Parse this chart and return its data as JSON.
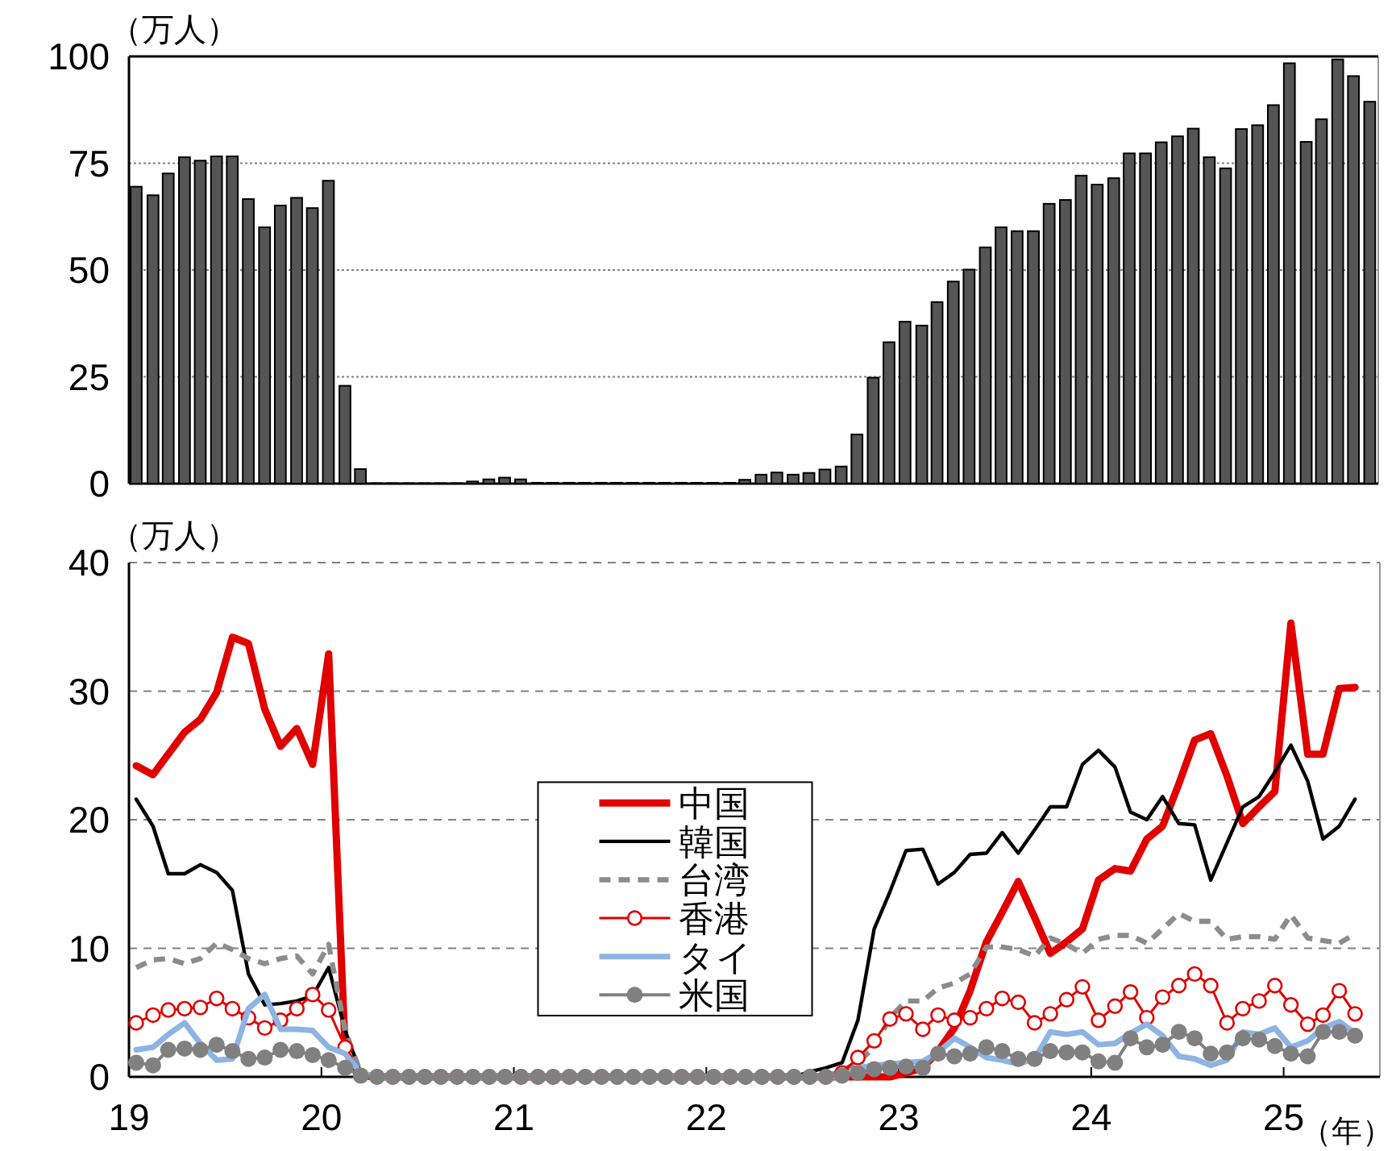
{
  "chart_data": [
    {
      "type": "bar",
      "ylabel": "（万人）",
      "color": "#555555",
      "grid": "y",
      "tick_labels": "y",
      "xlim": [
        "2019-01-01",
        "2025-07-01"
      ],
      "ylim": [
        0,
        100
      ],
      "yticks": [
        0,
        25,
        50,
        75,
        100
      ],
      "x": [
        "2019-01-15",
        "2019-02-15",
        "2019-03-15",
        "2019-04-15",
        "2019-05-15",
        "2019-06-15",
        "2019-07-15",
        "2019-08-15",
        "2019-09-15",
        "2019-10-15",
        "2019-11-15",
        "2019-12-15",
        "2020-01-15",
        "2020-02-15",
        "2020-03-15",
        "2020-04-15",
        "2020-05-15",
        "2020-06-15",
        "2020-07-15",
        "2020-08-15",
        "2020-09-15",
        "2020-10-15",
        "2020-11-15",
        "2020-12-15",
        "2021-01-15",
        "2021-02-15",
        "2021-03-15",
        "2021-04-15",
        "2021-05-15",
        "2021-06-15",
        "2021-07-15",
        "2021-08-15",
        "2021-09-15",
        "2021-10-15",
        "2021-11-15",
        "2021-12-15",
        "2022-01-15",
        "2022-02-15",
        "2022-03-15",
        "2022-04-15",
        "2022-05-15",
        "2022-06-15",
        "2022-07-15",
        "2022-08-15",
        "2022-09-15",
        "2022-10-15",
        "2022-11-15",
        "2022-12-15",
        "2023-01-15",
        "2023-02-15",
        "2023-03-15",
        "2023-04-15",
        "2023-05-15",
        "2023-06-15",
        "2023-07-15",
        "2023-08-15",
        "2023-09-15",
        "2023-10-15",
        "2023-11-15",
        "2023-12-15",
        "2024-01-15",
        "2024-02-15",
        "2024-03-15",
        "2024-04-15",
        "2024-05-15",
        "2024-06-15",
        "2024-07-15",
        "2024-08-15",
        "2024-09-15",
        "2024-10-15",
        "2024-11-15",
        "2024-12-15",
        "2025-01-15",
        "2025-02-15",
        "2025-03-15",
        "2025-04-15",
        "2025-05-15",
        "2025-06-15"
      ],
      "values": [
        69.5,
        67.5,
        72.6,
        76.4,
        75.6,
        76.6,
        76.6,
        66.6,
        60.0,
        65.1,
        66.9,
        64.5,
        70.9,
        22.9,
        3.4,
        0.1,
        0.1,
        0.1,
        0.1,
        0.1,
        0.1,
        0.5,
        1.0,
        1.4,
        1.0,
        0.2,
        0.2,
        0.2,
        0.2,
        0.2,
        0.2,
        0.2,
        0.2,
        0.2,
        0.2,
        0.2,
        0.2,
        0.2,
        0.9,
        2.1,
        2.6,
        2.1,
        2.5,
        3.3,
        4.0,
        11.5,
        24.8,
        33.1,
        37.9,
        37.0,
        42.5,
        47.3,
        50.1,
        55.3,
        60.0,
        59.1,
        59.1,
        65.5,
        66.4,
        72.1,
        70.0,
        71.5,
        77.3,
        77.3,
        79.9,
        81.3,
        83.1,
        76.4,
        73.8,
        83.0,
        83.9,
        88.6,
        98.4,
        80.0,
        85.3,
        99.3,
        95.4,
        89.4
      ]
    },
    {
      "type": "line",
      "ylabel": "（万人）",
      "xlabel": "（年）",
      "grid": "y",
      "legend": "center",
      "xlim": [
        "2019-01-01",
        "2025-07-01"
      ],
      "ylim": [
        0,
        40
      ],
      "yticks": [
        0,
        10,
        20,
        30,
        40
      ],
      "xticks": [
        {
          "value": "2019-01-01",
          "label": "19"
        },
        {
          "value": "2020-01-01",
          "label": "20"
        },
        {
          "value": "2021-01-01",
          "label": "21"
        },
        {
          "value": "2022-01-01",
          "label": "22"
        },
        {
          "value": "2023-01-01",
          "label": "23"
        },
        {
          "value": "2024-01-01",
          "label": "24"
        },
        {
          "value": "2025-01-01",
          "label": "25"
        }
      ],
      "x": [
        "2019-01-15",
        "2019-02-15",
        "2019-03-15",
        "2019-04-15",
        "2019-05-15",
        "2019-06-15",
        "2019-07-15",
        "2019-08-15",
        "2019-09-15",
        "2019-10-15",
        "2019-11-15",
        "2019-12-15",
        "2020-01-15",
        "2020-02-15",
        "2020-03-15",
        "2020-04-15",
        "2020-05-15",
        "2020-06-15",
        "2020-07-15",
        "2020-08-15",
        "2020-09-15",
        "2020-10-15",
        "2020-11-15",
        "2020-12-15",
        "2021-01-15",
        "2021-02-15",
        "2021-03-15",
        "2021-04-15",
        "2021-05-15",
        "2021-06-15",
        "2021-07-15",
        "2021-08-15",
        "2021-09-15",
        "2021-10-15",
        "2021-11-15",
        "2021-12-15",
        "2022-01-15",
        "2022-02-15",
        "2022-03-15",
        "2022-04-15",
        "2022-05-15",
        "2022-06-15",
        "2022-07-15",
        "2022-08-15",
        "2022-09-15",
        "2022-10-15",
        "2022-11-15",
        "2022-12-15",
        "2023-01-15",
        "2023-02-15",
        "2023-03-15",
        "2023-04-15",
        "2023-05-15",
        "2023-06-15",
        "2023-07-15",
        "2023-08-15",
        "2023-09-15",
        "2023-10-15",
        "2023-11-15",
        "2023-12-15",
        "2024-01-15",
        "2024-02-15",
        "2024-03-15",
        "2024-04-15",
        "2024-05-15",
        "2024-06-15",
        "2024-07-15",
        "2024-08-15",
        "2024-09-15",
        "2024-10-15",
        "2024-11-15",
        "2024-12-15",
        "2025-01-15",
        "2025-02-15",
        "2025-03-15",
        "2025-04-15",
        "2025-05-15"
      ],
      "series": [
        {
          "name": "中国",
          "color": "#e00000",
          "values": [
            24.2,
            23.5,
            25.1,
            26.8,
            27.8,
            29.9,
            34.2,
            33.7,
            28.6,
            25.7,
            27.1,
            24.3,
            32.9,
            2.0,
            0.1,
            0,
            0,
            0,
            0,
            0,
            0,
            0,
            0,
            0,
            0,
            0,
            0,
            0,
            0,
            0,
            0,
            0,
            0,
            0,
            0,
            0,
            0,
            0,
            0,
            0,
            0,
            0,
            0,
            0,
            0,
            0,
            0,
            0,
            0.3,
            0.7,
            2.0,
            3.8,
            6.7,
            10.5,
            12.8,
            15.2,
            12.4,
            9.6,
            10.5,
            11.5,
            15.3,
            16.2,
            16.0,
            18.5,
            19.5,
            22.8,
            26.2,
            26.7,
            23.4,
            19.7,
            21.0,
            22.2,
            35.3,
            25.1,
            25.1,
            30.2,
            30.3
          ]
        },
        {
          "name": "韓国",
          "color": "#000000",
          "values": [
            21.6,
            19.5,
            15.8,
            15.8,
            16.5,
            15.9,
            14.5,
            8.0,
            5.6,
            5.7,
            5.9,
            6.3,
            8.5,
            3.6,
            0.3,
            0,
            0,
            0,
            0,
            0,
            0,
            0,
            0,
            0,
            0,
            0,
            0,
            0,
            0,
            0,
            0,
            0,
            0,
            0,
            0,
            0,
            0,
            0,
            0,
            0,
            0,
            0,
            0.4,
            0.7,
            1.1,
            4.4,
            11.5,
            14.4,
            17.6,
            17.7,
            15.0,
            15.9,
            17.3,
            17.4,
            19.0,
            17.4,
            19.2,
            21.0,
            21.0,
            24.3,
            25.4,
            24.1,
            20.6,
            20.0,
            21.8,
            19.7,
            19.6,
            15.3,
            18.2,
            21.0,
            21.8,
            23.7,
            25.8,
            23.0,
            18.5,
            19.5,
            21.6
          ]
        },
        {
          "name": "台湾",
          "color": "#8c8c8c",
          "line_style": "dashed",
          "values": [
            8.5,
            9.1,
            9.2,
            8.8,
            9.2,
            10.4,
            9.9,
            9.2,
            8.8,
            9.2,
            9.4,
            8.0,
            10.3,
            3.6,
            0.3,
            0,
            0,
            0,
            0,
            0,
            0,
            0,
            0,
            0,
            0,
            0,
            0,
            0,
            0,
            0,
            0,
            0,
            0,
            0,
            0,
            0,
            0,
            0,
            0,
            0,
            0,
            0,
            0,
            0,
            0.5,
            1.1,
            2.3,
            4.6,
            5.9,
            5.9,
            6.9,
            7.3,
            8.0,
            10.1,
            10.1,
            9.9,
            9.4,
            10.8,
            10.3,
            9.6,
            10.7,
            11.0,
            11.0,
            10.4,
            11.5,
            12.7,
            12.1,
            12.1,
            10.7,
            10.9,
            10.9,
            10.7,
            12.6,
            10.8,
            10.6,
            10.4,
            11.1
          ]
        },
        {
          "name": "香港",
          "color": "#e00000",
          "marker": "circle",
          "values": [
            4.2,
            4.8,
            5.2,
            5.3,
            5.4,
            6.1,
            5.3,
            4.6,
            3.8,
            4.4,
            5.3,
            6.4,
            5.2,
            2.3,
            0.1,
            0,
            0,
            0,
            0,
            0,
            0,
            0,
            0,
            0,
            0,
            0,
            0,
            0,
            0,
            0,
            0,
            0,
            0,
            0,
            0,
            0,
            0,
            0,
            0,
            0,
            0,
            0,
            0,
            0,
            0.3,
            1.5,
            2.8,
            4.5,
            4.9,
            3.7,
            4.8,
            4.4,
            4.6,
            5.3,
            6.1,
            5.8,
            4.2,
            4.9,
            6.0,
            7.0,
            4.4,
            5.5,
            6.6,
            4.6,
            6.2,
            7.1,
            8.0,
            7.1,
            4.2,
            5.3,
            5.9,
            7.1,
            5.6,
            4.1,
            4.8,
            6.7,
            4.9
          ]
        },
        {
          "name": "タイ",
          "color": "#8db4e2",
          "values": [
            2.1,
            2.3,
            3.3,
            4.2,
            2.6,
            1.3,
            1.4,
            5.3,
            6.4,
            3.7,
            3.7,
            3.6,
            2.3,
            1.8,
            0.3,
            0,
            0,
            0,
            0,
            0,
            0,
            0,
            0,
            0,
            0,
            0,
            0,
            0,
            0,
            0,
            0,
            0,
            0,
            0,
            0,
            0,
            0,
            0,
            0,
            0,
            0,
            0,
            0,
            0,
            0,
            0.7,
            0.9,
            1.0,
            1.1,
            1.2,
            1.9,
            3.0,
            2.3,
            1.5,
            1.3,
            1.0,
            1.4,
            3.5,
            3.3,
            3.5,
            2.5,
            2.6,
            3.4,
            4.1,
            3.2,
            1.6,
            1.4,
            0.9,
            1.3,
            3.5,
            3.3,
            3.8,
            2.3,
            2.8,
            3.8,
            4.3,
            3.4
          ]
        },
        {
          "name": "米国",
          "color": "#808080",
          "marker": "circle",
          "values": [
            1.1,
            0.9,
            2.1,
            2.2,
            2.1,
            2.5,
            2.0,
            1.4,
            1.5,
            2.1,
            2.0,
            1.7,
            1.3,
            0.7,
            0.1,
            0,
            0,
            0,
            0,
            0,
            0,
            0,
            0,
            0,
            0,
            0,
            0,
            0,
            0,
            0,
            0,
            0,
            0,
            0,
            0,
            0,
            0,
            0,
            0,
            0,
            0,
            0,
            0,
            0,
            0.1,
            0.3,
            0.6,
            0.7,
            0.8,
            0.7,
            1.8,
            1.6,
            1.8,
            2.3,
            2.0,
            1.4,
            1.4,
            2.0,
            1.9,
            1.9,
            1.2,
            1.1,
            3.0,
            2.3,
            2.5,
            3.5,
            3.0,
            1.8,
            1.9,
            3.0,
            2.9,
            2.4,
            1.8,
            1.6,
            3.5,
            3.5,
            3.2
          ]
        }
      ]
    }
  ]
}
